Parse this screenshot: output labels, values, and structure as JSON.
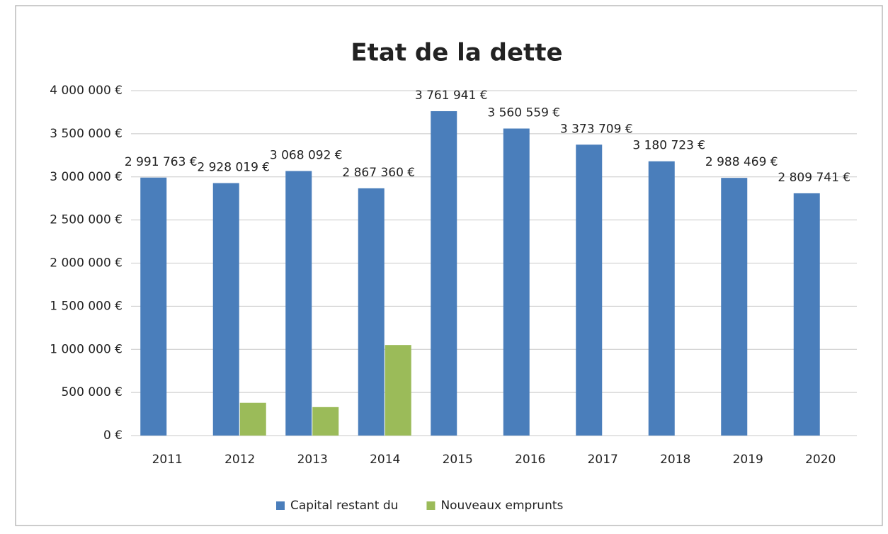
{
  "chart_data": {
    "type": "bar",
    "title": "Etat de la dette",
    "categories": [
      "2011",
      "2012",
      "2013",
      "2014",
      "2015",
      "2016",
      "2017",
      "2018",
      "2019",
      "2020"
    ],
    "series": [
      {
        "name": "Capital restant du",
        "color": "#4a7ebb",
        "values": [
          2991763,
          2928019,
          3068092,
          2867360,
          3761941,
          3560559,
          3373709,
          3180723,
          2988469,
          2809741
        ],
        "value_labels": [
          "2 991 763 €",
          "2 928 019 €",
          "3 068 092 €",
          "2 867 360 €",
          "3 761 941 €",
          "3 560 559 €",
          "3 373 709 €",
          "3 180 723 €",
          "2 988 469 €",
          "2 809 741 €"
        ]
      },
      {
        "name": "Nouveaux emprunts",
        "color": "#9bbb59",
        "values": [
          null,
          380000,
          330000,
          1050000,
          null,
          null,
          null,
          null,
          null,
          null
        ]
      }
    ],
    "ylim": [
      0,
      4000000
    ],
    "yticks": [
      {
        "value": 0,
        "label": "0 €"
      },
      {
        "value": 500000,
        "label": "500 000 €"
      },
      {
        "value": 1000000,
        "label": "1 000 000 €"
      },
      {
        "value": 1500000,
        "label": "1 500 000 €"
      },
      {
        "value": 2000000,
        "label": "2 000 000 €"
      },
      {
        "value": 2500000,
        "label": "2 500 000 €"
      },
      {
        "value": 3000000,
        "label": "3 000 000 €"
      },
      {
        "value": 3500000,
        "label": "3 500 000 €"
      },
      {
        "value": 4000000,
        "label": "4 000 000 €"
      }
    ],
    "grid": true,
    "legend": "bottom"
  }
}
